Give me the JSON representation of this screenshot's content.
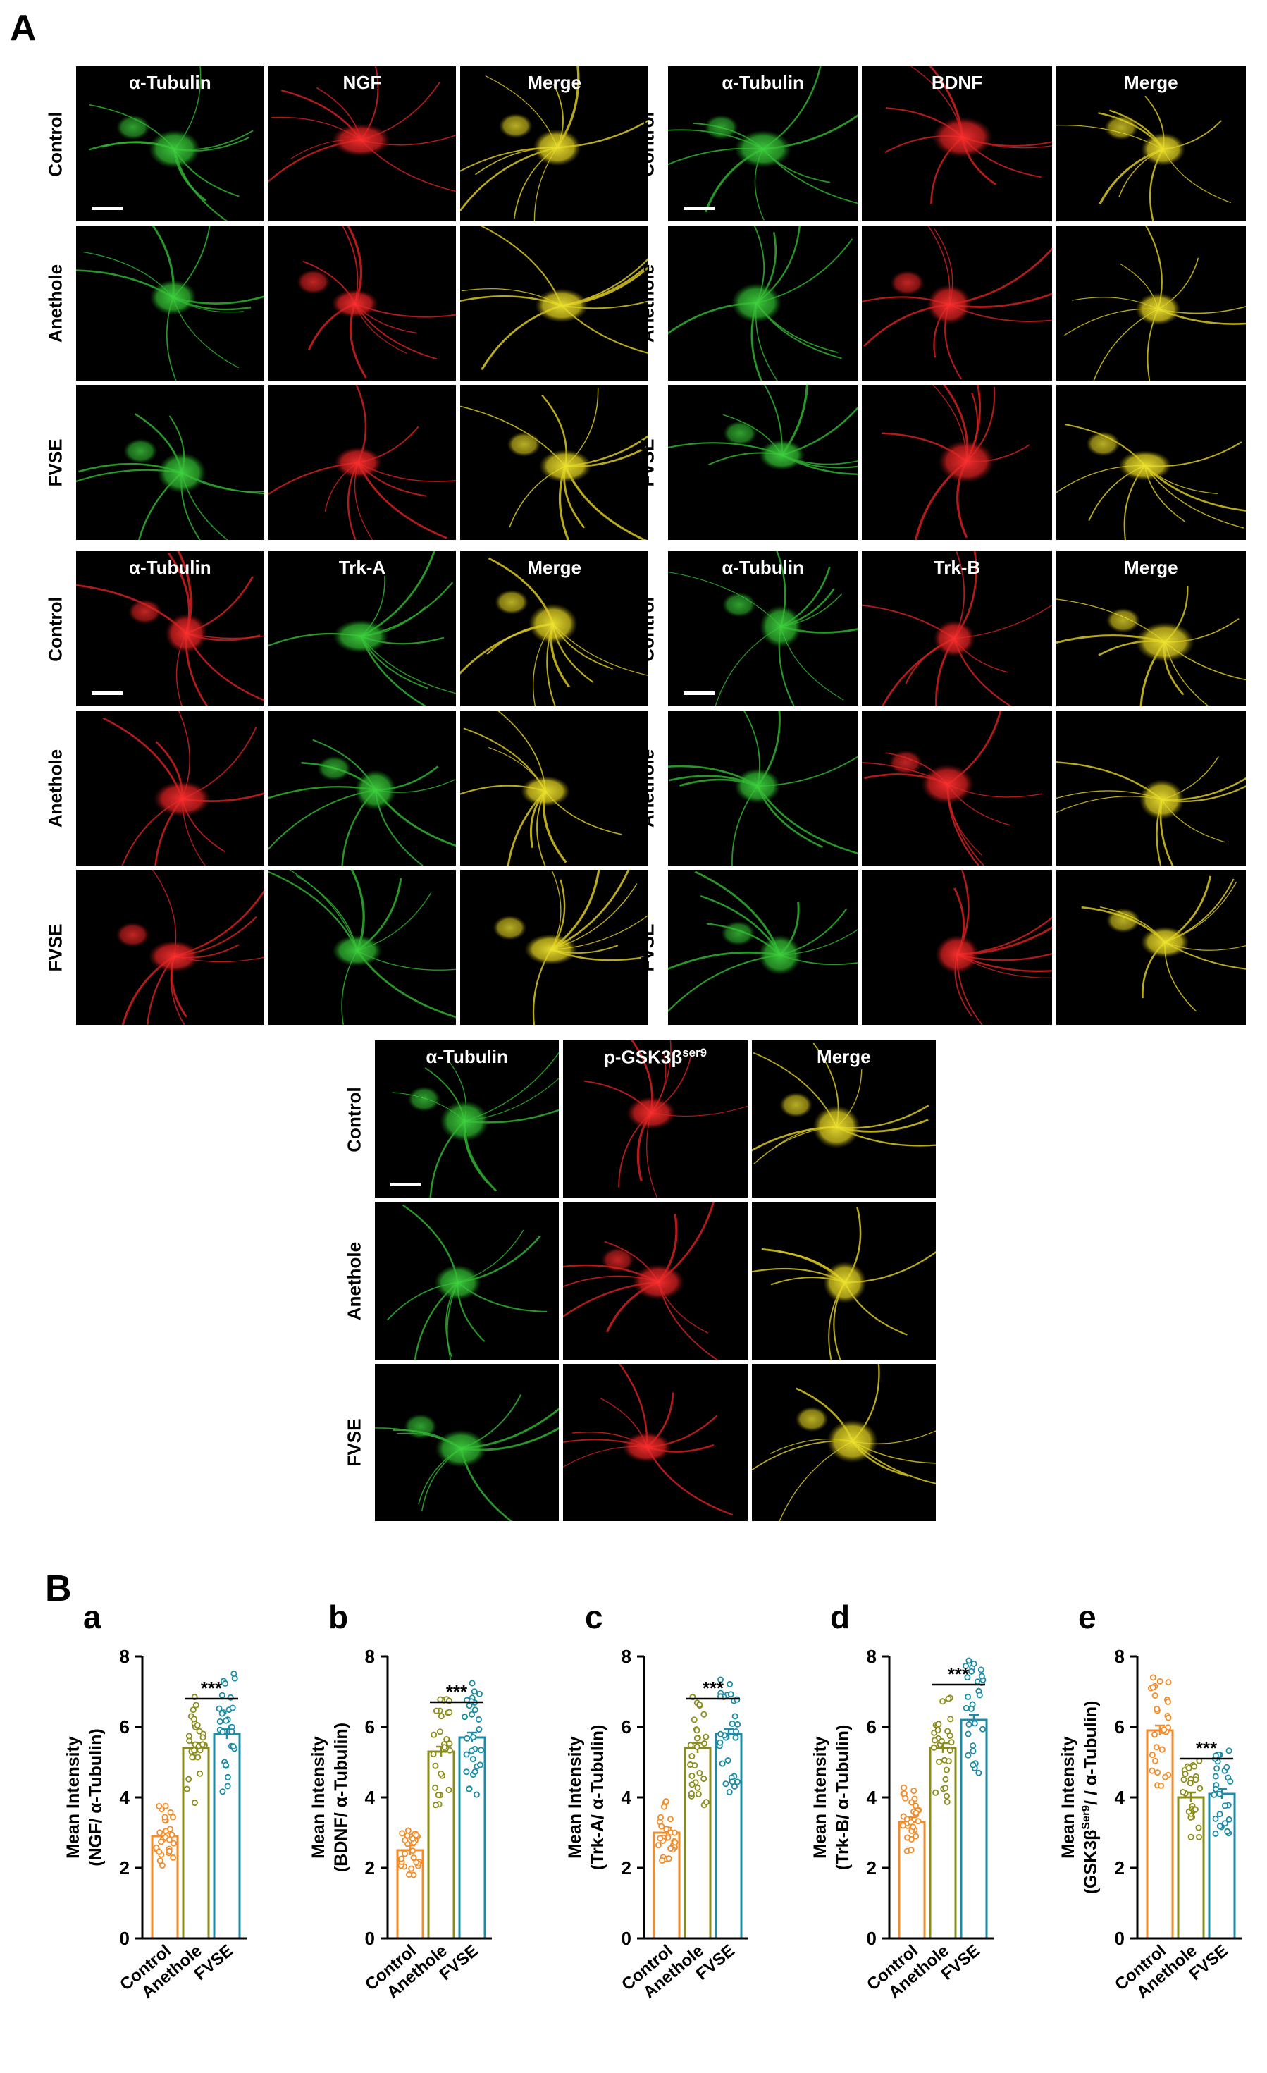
{
  "panel_labels": {
    "A": "A",
    "B": "B"
  },
  "rows": [
    "Control",
    "Anethole",
    "FVSE"
  ],
  "merge": "Merge",
  "alpha_tubulin": "α-Tubulin",
  "blocks": [
    {
      "id": "ngf",
      "cols": [
        "α-Tubulin",
        "NGF",
        "Merge"
      ],
      "colors": [
        "green",
        "red",
        "yellow"
      ]
    },
    {
      "id": "bdnf",
      "cols": [
        "α-Tubulin",
        "BDNF",
        "Merge"
      ],
      "colors": [
        "green",
        "red",
        "yellow"
      ]
    },
    {
      "id": "trka",
      "cols": [
        "α-Tubulin",
        "Trk-A",
        "Merge"
      ],
      "colors": [
        "red",
        "green",
        "yellow"
      ]
    },
    {
      "id": "trkb",
      "cols": [
        "α-Tubulin",
        "Trk-B",
        "Merge"
      ],
      "colors": [
        "green",
        "red",
        "yellow"
      ]
    },
    {
      "id": "gsk",
      "cols": [
        "α-Tubulin",
        "p-GSK3β",
        "Merge"
      ],
      "sup": "ser9",
      "colors": [
        "green",
        "red",
        "yellow"
      ]
    }
  ],
  "colors": {
    "control": "#f28c28",
    "anethole": "#8c8c1a",
    "fvse": "#1a8ca8"
  },
  "chart_data": [
    {
      "type": "bar",
      "letter": "a",
      "categories": [
        "Control",
        "Anethole",
        "FVSE"
      ],
      "values": [
        2.9,
        5.4,
        5.8
      ],
      "ylabel_line1": "Mean Intensity",
      "ylabel_line2": "(NGF/ α-Tubulin)",
      "ylim": [
        0,
        8
      ],
      "yticks": [
        "0",
        "2",
        "4",
        "6",
        "8"
      ],
      "significance": "***"
    },
    {
      "type": "bar",
      "letter": "b",
      "categories": [
        "Control",
        "Anethole",
        "FVSE"
      ],
      "values": [
        2.5,
        5.3,
        5.7
      ],
      "ylabel_line1": "Mean Intensity",
      "ylabel_line2": "(BDNF/ α-Tubulin)",
      "ylim": [
        0,
        8
      ],
      "yticks": [
        "0",
        "2",
        "4",
        "6",
        "8"
      ],
      "significance": "***"
    },
    {
      "type": "bar",
      "letter": "c",
      "categories": [
        "Control",
        "Anethole",
        "FVSE"
      ],
      "values": [
        3.0,
        5.4,
        5.8
      ],
      "ylabel_line1": "Mean Intensity",
      "ylabel_line2": "(Trk-A/ α-Tubulin)",
      "ylim": [
        0,
        8
      ],
      "yticks": [
        "0",
        "2",
        "4",
        "6",
        "8"
      ],
      "significance": "***"
    },
    {
      "type": "bar",
      "letter": "d",
      "categories": [
        "Control",
        "Anethole",
        "FVSE"
      ],
      "values": [
        3.3,
        5.4,
        6.2
      ],
      "ylabel_line1": "Mean Intensity",
      "ylabel_line2": "(Trk-B/ α-Tubulin)",
      "ylim": [
        0,
        8
      ],
      "yticks": [
        "0",
        "2",
        "4",
        "6",
        "8"
      ],
      "significance": "***"
    },
    {
      "type": "bar",
      "letter": "e",
      "categories": [
        "Control",
        "Anethole",
        "FVSE"
      ],
      "values": [
        5.9,
        4.0,
        4.1
      ],
      "ylabel_line1": "Mean Intensity",
      "ylabel_line2": "(GSK3β",
      "ylabel_sup": "Ser9",
      "ylabel_line2_end": "/ / α-Tubulin)",
      "ylim": [
        0,
        8
      ],
      "yticks": [
        "0",
        "2",
        "4",
        "6",
        "8"
      ],
      "significance": "***"
    }
  ]
}
